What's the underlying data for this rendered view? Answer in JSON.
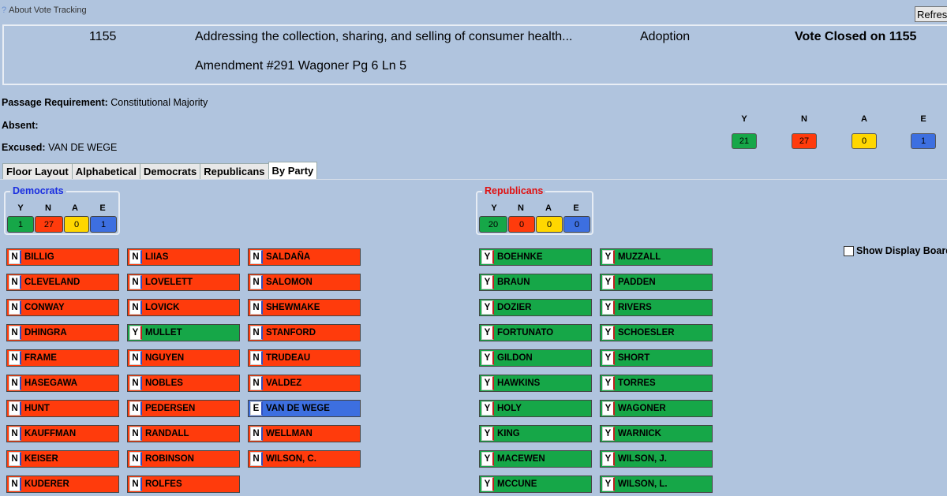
{
  "about": "About Vote Tracking",
  "refresh_label": "Refresh",
  "header": {
    "bill_number": "1155",
    "bill_title": "Addressing the collection, sharing, and selling of consumer health...",
    "action": "Adoption",
    "status": "Vote Closed on 1155",
    "amendment": "Amendment #291  Wagoner  Pg 6 Ln 5"
  },
  "passage_label": "Passage Requirement:",
  "passage_value": "Constitutional Majority",
  "absent_label": "Absent:",
  "absent_value": "",
  "excused_label": "Excused:",
  "excused_value": "VAN DE WEGE",
  "totals": {
    "Y": "21",
    "N": "27",
    "A": "0",
    "E": "1"
  },
  "colors": {
    "Y": "#16a748",
    "N": "#ff3b0c",
    "A": "#ffd700",
    "E": "#3d6fe0"
  },
  "tabs": [
    "Floor Layout",
    "Alphabetical",
    "Democrats",
    "Republicans",
    "By Party"
  ],
  "active_tab": "By Party",
  "democrats": {
    "title": "Democrats",
    "Y": "1",
    "N": "27",
    "A": "0",
    "E": "1"
  },
  "republicans": {
    "title": "Republicans",
    "Y": "20",
    "N": "0",
    "A": "0",
    "E": "0"
  },
  "show_display_board": "Show Display Board",
  "dem_members": [
    {
      "vote": "N",
      "name": "BILLIG"
    },
    {
      "vote": "N",
      "name": "CLEVELAND"
    },
    {
      "vote": "N",
      "name": "CONWAY"
    },
    {
      "vote": "N",
      "name": "DHINGRA"
    },
    {
      "vote": "N",
      "name": "FRAME"
    },
    {
      "vote": "N",
      "name": "HASEGAWA"
    },
    {
      "vote": "N",
      "name": "HUNT"
    },
    {
      "vote": "N",
      "name": "KAUFFMAN"
    },
    {
      "vote": "N",
      "name": "KEISER"
    },
    {
      "vote": "N",
      "name": "KUDERER"
    },
    {
      "vote": "N",
      "name": "LIIAS"
    },
    {
      "vote": "N",
      "name": "LOVELETT"
    },
    {
      "vote": "N",
      "name": "LOVICK"
    },
    {
      "vote": "Y",
      "name": "MULLET"
    },
    {
      "vote": "N",
      "name": "NGUYEN"
    },
    {
      "vote": "N",
      "name": "NOBLES"
    },
    {
      "vote": "N",
      "name": "PEDERSEN"
    },
    {
      "vote": "N",
      "name": "RANDALL"
    },
    {
      "vote": "N",
      "name": "ROBINSON"
    },
    {
      "vote": "N",
      "name": "ROLFES"
    },
    {
      "vote": "N",
      "name": "SALDAÑA"
    },
    {
      "vote": "N",
      "name": "SALOMON"
    },
    {
      "vote": "N",
      "name": "SHEWMAKE"
    },
    {
      "vote": "N",
      "name": "STANFORD"
    },
    {
      "vote": "N",
      "name": "TRUDEAU"
    },
    {
      "vote": "N",
      "name": "VALDEZ"
    },
    {
      "vote": "E",
      "name": "VAN DE WEGE"
    },
    {
      "vote": "N",
      "name": "WELLMAN"
    },
    {
      "vote": "N",
      "name": "WILSON, C."
    }
  ],
  "rep_members": [
    {
      "vote": "Y",
      "name": "BOEHNKE"
    },
    {
      "vote": "Y",
      "name": "BRAUN"
    },
    {
      "vote": "Y",
      "name": "DOZIER"
    },
    {
      "vote": "Y",
      "name": "FORTUNATO"
    },
    {
      "vote": "Y",
      "name": "GILDON"
    },
    {
      "vote": "Y",
      "name": "HAWKINS"
    },
    {
      "vote": "Y",
      "name": "HOLY"
    },
    {
      "vote": "Y",
      "name": "KING"
    },
    {
      "vote": "Y",
      "name": "MACEWEN"
    },
    {
      "vote": "Y",
      "name": "MCCUNE"
    },
    {
      "vote": "Y",
      "name": "MUZZALL"
    },
    {
      "vote": "Y",
      "name": "PADDEN"
    },
    {
      "vote": "Y",
      "name": "RIVERS"
    },
    {
      "vote": "Y",
      "name": "SCHOESLER"
    },
    {
      "vote": "Y",
      "name": "SHORT"
    },
    {
      "vote": "Y",
      "name": "TORRES"
    },
    {
      "vote": "Y",
      "name": "WAGONER"
    },
    {
      "vote": "Y",
      "name": "WARNICK"
    },
    {
      "vote": "Y",
      "name": "WILSON, J."
    },
    {
      "vote": "Y",
      "name": "WILSON, L."
    }
  ]
}
